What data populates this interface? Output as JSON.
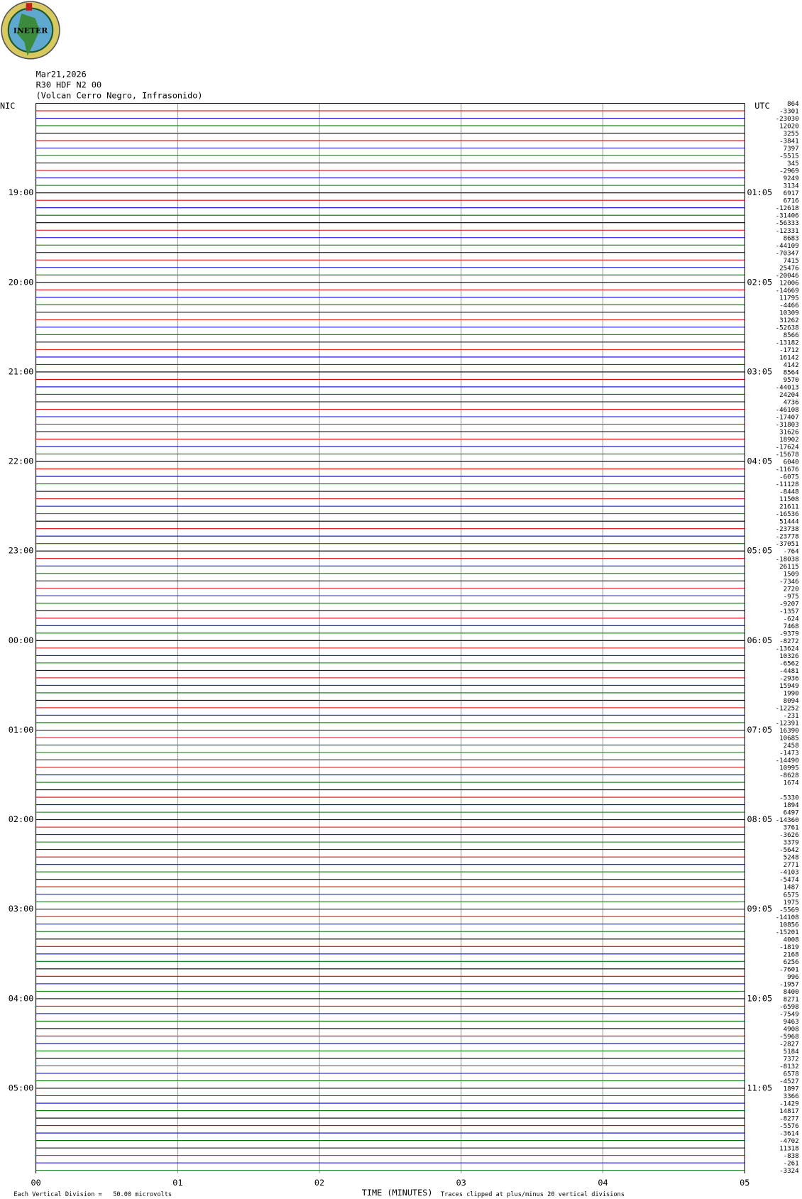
{
  "logo": "INETER",
  "header": {
    "date": "Mar21,2026",
    "station": "R30 HDF N2 00",
    "location": "(Volcan Cerro Negro, Infrasonido)"
  },
  "left_label": "NIC",
  "right_label": "UTC",
  "colors": [
    "#000000",
    "#e00000",
    "#0000e0",
    "#007000"
  ],
  "xlim": [
    0,
    5
  ],
  "xticks": [
    {
      "value": 0,
      "label": "00"
    },
    {
      "value": 1,
      "label": "01"
    },
    {
      "value": 2,
      "label": "02"
    },
    {
      "value": 3,
      "label": "03"
    },
    {
      "value": 4,
      "label": "04"
    },
    {
      "value": 5,
      "label": "05"
    }
  ],
  "xlabel": "TIME (MINUTES)",
  "scale_note": "Each Vertical Division =   50.00 microvolts",
  "clip_note": "Traces clipped at plus/minus 20 vertical divisions",
  "traces": [
    {
      "offset": 864
    },
    {
      "offset": -3301
    },
    {
      "offset": -23030
    },
    {
      "offset": 12020
    },
    {
      "offset": 3255
    },
    {
      "offset": -3841
    },
    {
      "offset": 7397
    },
    {
      "offset": -5515
    },
    {
      "offset": 345
    },
    {
      "offset": -2969
    },
    {
      "offset": 9249
    },
    {
      "offset": 3134
    },
    {
      "offset": 6917,
      "nic": "19:00",
      "utc": "01:05"
    },
    {
      "offset": 6716
    },
    {
      "offset": -12618
    },
    {
      "offset": -31406
    },
    {
      "offset": -56333
    },
    {
      "offset": -12331
    },
    {
      "offset": 8683
    },
    {
      "offset": -44109
    },
    {
      "offset": -70347
    },
    {
      "offset": 7415
    },
    {
      "offset": 25476
    },
    {
      "offset": -20046
    },
    {
      "offset": 12006,
      "nic": "20:00",
      "utc": "02:05"
    },
    {
      "offset": -14669
    },
    {
      "offset": 11795
    },
    {
      "offset": -4466
    },
    {
      "offset": 10309
    },
    {
      "offset": 31262
    },
    {
      "offset": -52638
    },
    {
      "offset": 8566
    },
    {
      "offset": -13182
    },
    {
      "offset": -1712
    },
    {
      "offset": 16142
    },
    {
      "offset": 4142
    },
    {
      "offset": 8564,
      "nic": "21:00",
      "utc": "03:05"
    },
    {
      "offset": 9570
    },
    {
      "offset": -44013
    },
    {
      "offset": 24204
    },
    {
      "offset": 4736
    },
    {
      "offset": -46108
    },
    {
      "offset": -17407
    },
    {
      "offset": -31803
    },
    {
      "offset": 31626
    },
    {
      "offset": 18902
    },
    {
      "offset": -17624
    },
    {
      "offset": -15678
    },
    {
      "offset": 6040,
      "nic": "22:00",
      "utc": "04:05"
    },
    {
      "offset": -11676
    },
    {
      "offset": -6075
    },
    {
      "offset": -11128
    },
    {
      "offset": -8448
    },
    {
      "offset": 11508
    },
    {
      "offset": 21611
    },
    {
      "offset": -16536
    },
    {
      "offset": 51444
    },
    {
      "offset": -23738
    },
    {
      "offset": -23778
    },
    {
      "offset": -37051
    },
    {
      "offset": -764,
      "nic": "23:00",
      "utc": "05:05"
    },
    {
      "offset": -18038
    },
    {
      "offset": 26115
    },
    {
      "offset": 1509
    },
    {
      "offset": -7346
    },
    {
      "offset": 2720
    },
    {
      "offset": -975
    },
    {
      "offset": -9207
    },
    {
      "offset": -1357
    },
    {
      "offset": -624
    },
    {
      "offset": 7468
    },
    {
      "offset": -9379
    },
    {
      "offset": -8272,
      "nic": "00:00",
      "utc": "06:05"
    },
    {
      "offset": -13624
    },
    {
      "offset": 10326
    },
    {
      "offset": -6562
    },
    {
      "offset": -4481
    },
    {
      "offset": -2936
    },
    {
      "offset": 15949
    },
    {
      "offset": 1990
    },
    {
      "offset": 8094
    },
    {
      "offset": -12252
    },
    {
      "offset": -231
    },
    {
      "offset": -12391
    },
    {
      "offset": 16390,
      "nic": "01:00",
      "utc": "07:05"
    },
    {
      "offset": 10685
    },
    {
      "offset": 2458
    },
    {
      "offset": -1473
    },
    {
      "offset": -14490
    },
    {
      "offset": 10995
    },
    {
      "offset": -8628
    },
    {
      "offset": 1674
    },
    {
      "offset": null
    },
    {
      "offset": -5330
    },
    {
      "offset": 1894
    },
    {
      "offset": 6497
    },
    {
      "offset": -14360,
      "nic": "02:00",
      "utc": "08:05"
    },
    {
      "offset": 3761
    },
    {
      "offset": -3626
    },
    {
      "offset": 3379
    },
    {
      "offset": -5642
    },
    {
      "offset": 5248
    },
    {
      "offset": 2771
    },
    {
      "offset": -4103
    },
    {
      "offset": -5474
    },
    {
      "offset": 1487
    },
    {
      "offset": 6575
    },
    {
      "offset": 1975
    },
    {
      "offset": -5569,
      "nic": "03:00",
      "utc": "09:05"
    },
    {
      "offset": -14108
    },
    {
      "offset": 10856
    },
    {
      "offset": -15201
    },
    {
      "offset": 4008
    },
    {
      "offset": -1819
    },
    {
      "offset": 2168
    },
    {
      "offset": 6256
    },
    {
      "offset": -7601
    },
    {
      "offset": 996
    },
    {
      "offset": -1957
    },
    {
      "offset": 8400
    },
    {
      "offset": 8271,
      "nic": "04:00",
      "utc": "10:05"
    },
    {
      "offset": -6598
    },
    {
      "offset": -7549
    },
    {
      "offset": 9463
    },
    {
      "offset": 4908
    },
    {
      "offset": -5968
    },
    {
      "offset": -2827
    },
    {
      "offset": 5184
    },
    {
      "offset": 7372
    },
    {
      "offset": -8132
    },
    {
      "offset": 6578
    },
    {
      "offset": -4527
    },
    {
      "offset": 1897,
      "nic": "05:00",
      "utc": "11:05"
    },
    {
      "offset": 3366
    },
    {
      "offset": -1429
    },
    {
      "offset": 14817
    },
    {
      "offset": -8277
    },
    {
      "offset": -5576
    },
    {
      "offset": -3614
    },
    {
      "offset": -4702
    },
    {
      "offset": 11318
    },
    {
      "offset": -838
    },
    {
      "offset": -261
    },
    {
      "offset": -3324
    }
  ]
}
